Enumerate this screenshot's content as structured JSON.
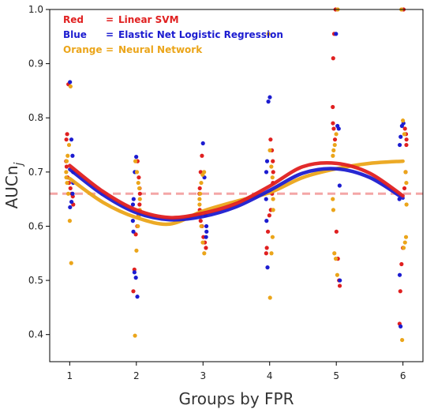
{
  "chart_data": {
    "type": "scatter",
    "title": "",
    "xlabel": "Groups by FPR",
    "ylabel": "AUCn",
    "ylabel_sub": "j",
    "xlim": [
      0.7,
      6.3
    ],
    "ylim": [
      0.35,
      1.0
    ],
    "x_ticks": [
      1,
      2,
      3,
      4,
      5,
      6
    ],
    "y_ticks": [
      0.4,
      0.5,
      0.6,
      0.7,
      0.8,
      0.9,
      1.0
    ],
    "x_tick_labels": [
      "1",
      "2",
      "3",
      "4",
      "5",
      "6"
    ],
    "y_tick_labels": [
      "0.4",
      "0.5",
      "0.6",
      "0.7",
      "0.8",
      "0.9",
      "1.0"
    ],
    "grid": false,
    "legend_position": "top-left",
    "legend": [
      {
        "color_word": "Red",
        "sep": "=",
        "label": "Linear SVM",
        "color": "#e02020"
      },
      {
        "color_word": "Blue",
        "sep": "=",
        "label": "Elastic Net Logistic Regression",
        "color": "#1c1cd0"
      },
      {
        "color_word": "Orange",
        "sep": "=",
        "label": "Neural Network",
        "color": "#eba51a"
      }
    ],
    "reference_line": {
      "y": 0.66,
      "color": "#f4a6a6",
      "style": "dashed"
    },
    "series": [
      {
        "name": "Linear SVM",
        "color": "#e02020",
        "points": {
          "1": [
            0.862,
            0.77,
            0.76,
            0.72,
            0.71,
            0.69,
            0.68,
            0.67,
            0.66,
            0.655,
            0.64
          ],
          "2": [
            0.72,
            0.69,
            0.67,
            0.66,
            0.64,
            0.62,
            0.6,
            0.585,
            0.52,
            0.48
          ],
          "3": [
            0.73,
            0.7,
            0.67,
            0.66,
            0.63,
            0.61,
            0.6,
            0.58,
            0.57,
            0.56
          ],
          "4": [
            0.76,
            0.74,
            0.72,
            0.7,
            0.68,
            0.66,
            0.63,
            0.62,
            0.59,
            0.56,
            0.55
          ],
          "5": [
            1.0,
            0.955,
            0.91,
            0.82,
            0.79,
            0.78,
            0.76,
            0.59,
            0.54,
            0.5,
            0.49
          ],
          "6": [
            1.0,
            0.78,
            0.77,
            0.76,
            0.75,
            0.7,
            0.67,
            0.56,
            0.53,
            0.48,
            0.42
          ]
        },
        "curve": [
          [
            1,
            0.712
          ],
          [
            1.5,
            0.664
          ],
          [
            2,
            0.63
          ],
          [
            2.5,
            0.616
          ],
          [
            3,
            0.624
          ],
          [
            3.5,
            0.642
          ],
          [
            4,
            0.674
          ],
          [
            4.5,
            0.71
          ],
          [
            5,
            0.716
          ],
          [
            5.5,
            0.698
          ],
          [
            6,
            0.656
          ]
        ]
      },
      {
        "name": "Elastic Net Logistic Regression",
        "color": "#1c1cd0",
        "points": {
          "1": [
            0.866,
            0.76,
            0.73,
            0.7,
            0.68,
            0.66,
            0.645,
            0.635
          ],
          "2": [
            0.728,
            0.7,
            0.65,
            0.64,
            0.61,
            0.59,
            0.515,
            0.505,
            0.47
          ],
          "3": [
            0.753,
            0.69,
            0.62,
            0.6,
            0.59,
            0.58
          ],
          "4": [
            0.838,
            0.83,
            0.72,
            0.7,
            0.65,
            0.61,
            0.524
          ],
          "5": [
            0.955,
            0.785,
            0.78,
            0.675,
            0.5
          ],
          "6": [
            0.79,
            0.785,
            0.765,
            0.75,
            0.65,
            0.51,
            0.415
          ]
        },
        "curve": [
          [
            1,
            0.705
          ],
          [
            1.5,
            0.658
          ],
          [
            2,
            0.625
          ],
          [
            2.5,
            0.612
          ],
          [
            3,
            0.618
          ],
          [
            3.5,
            0.636
          ],
          [
            4,
            0.666
          ],
          [
            4.5,
            0.698
          ],
          [
            5,
            0.706
          ],
          [
            5.5,
            0.69
          ],
          [
            6,
            0.652
          ]
        ]
      },
      {
        "name": "Neural Network",
        "color": "#eba51a",
        "points": {
          "1": [
            0.858,
            0.75,
            0.73,
            0.72,
            0.7,
            0.69,
            0.68,
            0.66,
            0.61,
            0.532
          ],
          "2": [
            0.72,
            0.7,
            0.68,
            0.67,
            0.65,
            0.63,
            0.62,
            0.6,
            0.555,
            0.398
          ],
          "3": [
            0.7,
            0.695,
            0.68,
            0.66,
            0.65,
            0.64,
            0.62,
            0.6,
            0.57,
            0.55
          ],
          "4": [
            0.955,
            0.74,
            0.71,
            0.69,
            0.65,
            0.63,
            0.58,
            0.55,
            0.468
          ],
          "5": [
            1.0,
            0.77,
            0.75,
            0.74,
            0.73,
            0.65,
            0.63,
            0.55,
            0.54,
            0.51
          ],
          "6": [
            1.0,
            0.795,
            0.77,
            0.7,
            0.68,
            0.64,
            0.58,
            0.57,
            0.56,
            0.39
          ]
        },
        "curve": [
          [
            1,
            0.688
          ],
          [
            1.5,
            0.644
          ],
          [
            2,
            0.616
          ],
          [
            2.5,
            0.604
          ],
          [
            3,
            0.628
          ],
          [
            3.5,
            0.646
          ],
          [
            4,
            0.662
          ],
          [
            4.5,
            0.69
          ],
          [
            5,
            0.706
          ],
          [
            5.5,
            0.716
          ],
          [
            6,
            0.72
          ]
        ]
      }
    ]
  }
}
